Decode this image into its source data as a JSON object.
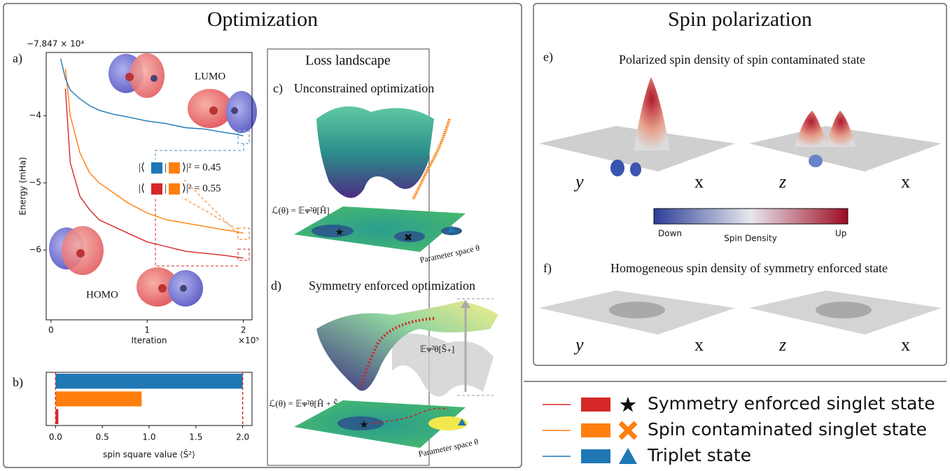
{
  "chart_data": [
    {
      "type": "line",
      "y_label": "Energy (mHa)",
      "x_label": "Iteration",
      "y_offset": "−7.847 × 10⁴",
      "x_offset": "×10⁵",
      "x": [
        0.05,
        0.1,
        0.15,
        0.2,
        0.3,
        0.4,
        0.5,
        0.65,
        0.8,
        1.0,
        1.2,
        1.4,
        1.6,
        1.8,
        1.9,
        2.0
      ],
      "series": [
        {
          "name": "Symmetry enforced singlet state",
          "color": "#d62728",
          "marker": "star",
          "values": [
            null,
            null,
            -3.6,
            -4.7,
            -5.2,
            -5.4,
            -5.55,
            -5.65,
            -5.75,
            -5.88,
            -5.95,
            -6.02,
            -6.05,
            -6.08,
            -6.1,
            -6.12
          ]
        },
        {
          "name": "Spin contaminated singlet state",
          "color": "#ff7f0e",
          "marker": "cross",
          "values": [
            null,
            null,
            -3.3,
            -4.0,
            -4.55,
            -4.85,
            -5.0,
            -5.15,
            -5.3,
            -5.45,
            -5.55,
            -5.6,
            -5.65,
            -5.7,
            -5.72,
            -5.75
          ]
        },
        {
          "name": "Triplet state",
          "color": "#1f77b4",
          "marker": "triangle",
          "values": [
            null,
            -3.15,
            -3.45,
            -3.62,
            -3.75,
            -3.85,
            -3.92,
            -3.98,
            -4.02,
            -4.08,
            -4.12,
            -4.18,
            -4.2,
            -4.25,
            -4.27,
            -4.3
          ]
        }
      ],
      "xlim": [
        -0.05,
        2.09
      ],
      "xticks": [
        0,
        1,
        2
      ],
      "ylim": [
        -7.04,
        -3.06
      ],
      "yticks": [
        {
          "value": -4,
          "label": "−4"
        },
        {
          "value": -5,
          "label": "−5"
        },
        {
          "value": -6,
          "label": "−6"
        }
      ]
    },
    {
      "type": "barh",
      "x_label": "spin square value ⟨Ŝ²⟩",
      "categories": [
        null,
        null,
        null
      ],
      "values": [
        2.0,
        0.92,
        0.03
      ],
      "colors": [
        "#1f77b4",
        "#ff7f0e",
        "#d62728"
      ],
      "reference_lines": [
        0,
        2
      ],
      "reference_color": "#d62728",
      "xlim": [
        -0.1,
        2.1
      ],
      "xticks": [
        {
          "value": 0,
          "label": "0.0"
        },
        0.5,
        {
          "value": 1,
          "label": "1.0"
        },
        1.5,
        {
          "value": 2,
          "label": "2.0"
        }
      ]
    }
  ],
  "optimization": {
    "title": "Optimization",
    "label_a": "a)",
    "label_b": "b)",
    "lumo": "LUMO",
    "homo": "HOMO",
    "overlap_triplet": [
      "|⟨",
      "|",
      "⟩|² = 0.45"
    ],
    "overlap_singlet": [
      "|⟨",
      "|",
      "⟩|² = 0.55"
    ]
  },
  "loss_landscape": {
    "title": "Loss landscape",
    "label_c": "c)",
    "title_c": "Unconstrained optimization",
    "loss_c": "ℒ(θ) = 𝔼ᴪ²θ[Ĥ]",
    "label_d": "d)",
    "title_d": "Symmetry enforced optimization",
    "loss_d": "ℒ(θ) = 𝔼ᴪ²θ[Ĥ + Ŝ₊]",
    "penalty_d": "𝔼ᴪ²θ[Ŝ₊]",
    "param_space": "Parameter space θ"
  },
  "spin_polarization": {
    "title": "Spin polarization",
    "label_e": "e)",
    "title_e": "Polarized spin density of spin contaminated state",
    "label_f": "f)",
    "title_f": "Homogeneous spin density of symmetry enforced state",
    "axis_y": "y",
    "axis_x": "x",
    "axis_z": "z",
    "colorbar_down": "Down",
    "colorbar_title": "Spin Density",
    "colorbar_up": "Up"
  }
}
